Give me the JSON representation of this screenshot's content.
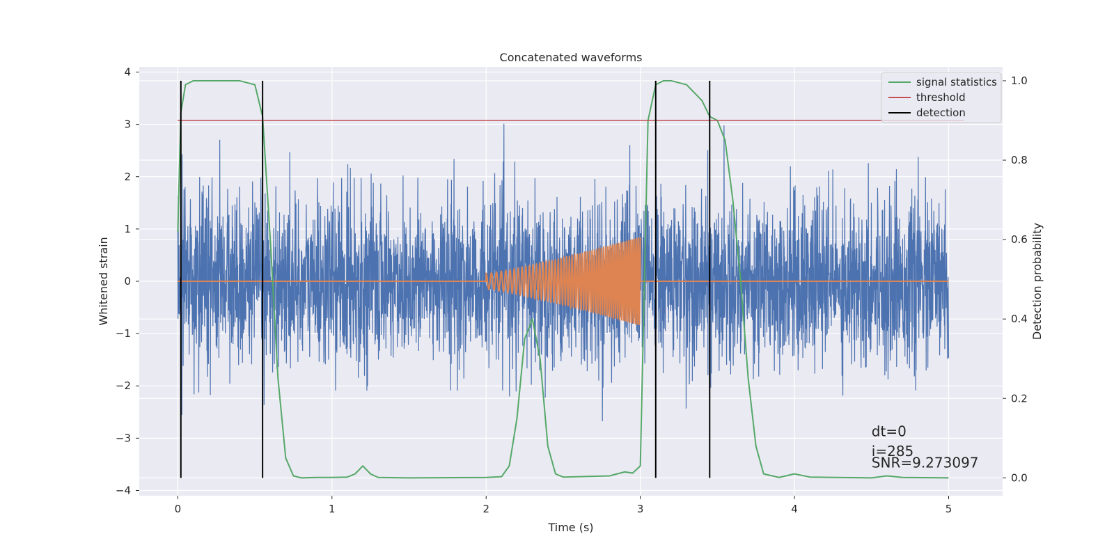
{
  "chart_data": {
    "type": "line",
    "title": "Concatenated waveforms",
    "xlabel": "Time (s)",
    "ylabel_left": "Whitened strain",
    "ylabel_right": "Detection probability",
    "xlim": [
      -0.25,
      5.35
    ],
    "ylim_left": [
      -4.1,
      4.1
    ],
    "ylim_right": [
      -0.045,
      1.035
    ],
    "xticks": [
      0,
      1,
      2,
      3,
      4,
      5
    ],
    "xtick_labels": [
      "0",
      "1",
      "2",
      "3",
      "4",
      "5"
    ],
    "yticks_left": [
      -4,
      -3,
      -2,
      -1,
      0,
      1,
      2,
      3,
      4
    ],
    "ytick_labels_left": [
      "−4",
      "−3",
      "−2",
      "−1",
      "0",
      "1",
      "2",
      "3",
      "4"
    ],
    "yticks_right": [
      0.0,
      0.2,
      0.4,
      0.6,
      0.8,
      1.0
    ],
    "ytick_labels_right": [
      "0.0",
      "0.2",
      "0.4",
      "0.6",
      "0.8",
      "1.0"
    ],
    "grid": true,
    "legend_position": "top-right",
    "colors": {
      "background": "#eaeaf2",
      "grid": "#ffffff",
      "whitened_strain": "#4c72b0",
      "template": "#dd8452",
      "signal_statistics": "#55a868",
      "threshold": "#c44e52",
      "detection": "#000000"
    },
    "series": [
      {
        "name": "",
        "axis": "left",
        "kind": "noise",
        "x_range": [
          0,
          5
        ],
        "typical_amplitude": 0.75,
        "peak_range": [
          -3.75,
          3.75
        ]
      },
      {
        "name": "",
        "axis": "left",
        "kind": "chirp",
        "x": [
          0,
          2,
          3,
          3.0,
          5
        ],
        "chirp_start": 2.0,
        "chirp_end": 3.0,
        "amplitude_start": 0.15,
        "amplitude_end": 0.85,
        "flat_value": 0
      },
      {
        "name": "signal statistics",
        "axis": "right",
        "x": [
          0,
          0.02,
          0.05,
          0.1,
          0.2,
          0.3,
          0.4,
          0.5,
          0.55,
          0.6,
          0.65,
          0.7,
          0.75,
          0.8,
          0.9,
          1.0,
          1.1,
          1.15,
          1.2,
          1.25,
          1.3,
          1.5,
          2.0,
          2.1,
          2.15,
          2.2,
          2.25,
          2.3,
          2.35,
          2.4,
          2.45,
          2.5,
          2.8,
          2.9,
          2.95,
          3.0,
          3.05,
          3.1,
          3.15,
          3.2,
          3.3,
          3.4,
          3.45,
          3.5,
          3.55,
          3.6,
          3.65,
          3.7,
          3.75,
          3.8,
          3.9,
          4.0,
          4.1,
          4.5,
          4.6,
          4.7,
          5.0
        ],
        "values": [
          0.62,
          0.92,
          0.99,
          1.0,
          1.0,
          1.0,
          1.0,
          0.99,
          0.91,
          0.6,
          0.25,
          0.05,
          0.005,
          0.0,
          0.001,
          0.001,
          0.002,
          0.01,
          0.03,
          0.01,
          0.001,
          0.0,
          0.001,
          0.003,
          0.03,
          0.15,
          0.35,
          0.4,
          0.3,
          0.08,
          0.01,
          0.002,
          0.005,
          0.015,
          0.012,
          0.03,
          0.9,
          0.99,
          1.0,
          1.0,
          0.99,
          0.95,
          0.91,
          0.9,
          0.85,
          0.7,
          0.5,
          0.25,
          0.08,
          0.01,
          0.001,
          0.01,
          0.002,
          0.0,
          0.005,
          0.001,
          0.0
        ]
      },
      {
        "name": "threshold",
        "axis": "right",
        "x": [
          0,
          5.1
        ],
        "values": [
          0.9,
          0.9
        ]
      },
      {
        "name": "detection",
        "axis": "right",
        "kind": "vlines",
        "x": [
          0.02,
          0.55,
          3.1,
          3.45
        ],
        "range": [
          0.0,
          1.0
        ]
      }
    ],
    "annotations": [
      "dt=0",
      "i=285",
      "SNR=9.273097"
    ]
  }
}
